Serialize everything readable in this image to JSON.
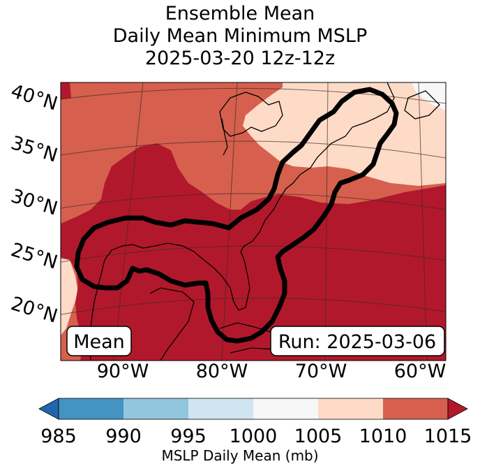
{
  "title": {
    "line1": "Ensemble Mean",
    "line2": "Daily Mean Minimum MSLP",
    "line3": "2025-03-20 12z-12z"
  },
  "map": {
    "lat_labels": [
      "40°N",
      "35°N",
      "30°N",
      "25°N",
      "20°N"
    ],
    "lon_labels": [
      "90°W",
      "80°W",
      "70°W",
      "60°W"
    ],
    "badge_left": "Mean",
    "badge_right": "Run: 2025-03-06",
    "colors": {
      "fill_1005_1010": "#fddbc7",
      "fill_1010_1015": "#d6604d",
      "fill_over_1015": "#b2182b",
      "land_unshaded": "#f7f7f7",
      "contour": "#000000"
    }
  },
  "colorbar": {
    "ticks": [
      "985",
      "990",
      "995",
      "1000",
      "1005",
      "1010",
      "1015"
    ],
    "label": "MSLP Daily Mean (mb)",
    "colors": {
      "under": "#2166ac",
      "985_990": "#4393c3",
      "990_995": "#92c5de",
      "995_1000": "#d1e5f0",
      "1000_1005": "#f7f7f7",
      "1005_1010": "#fddbc7",
      "1010_1015": "#d6604d",
      "over": "#b2182b"
    }
  }
}
